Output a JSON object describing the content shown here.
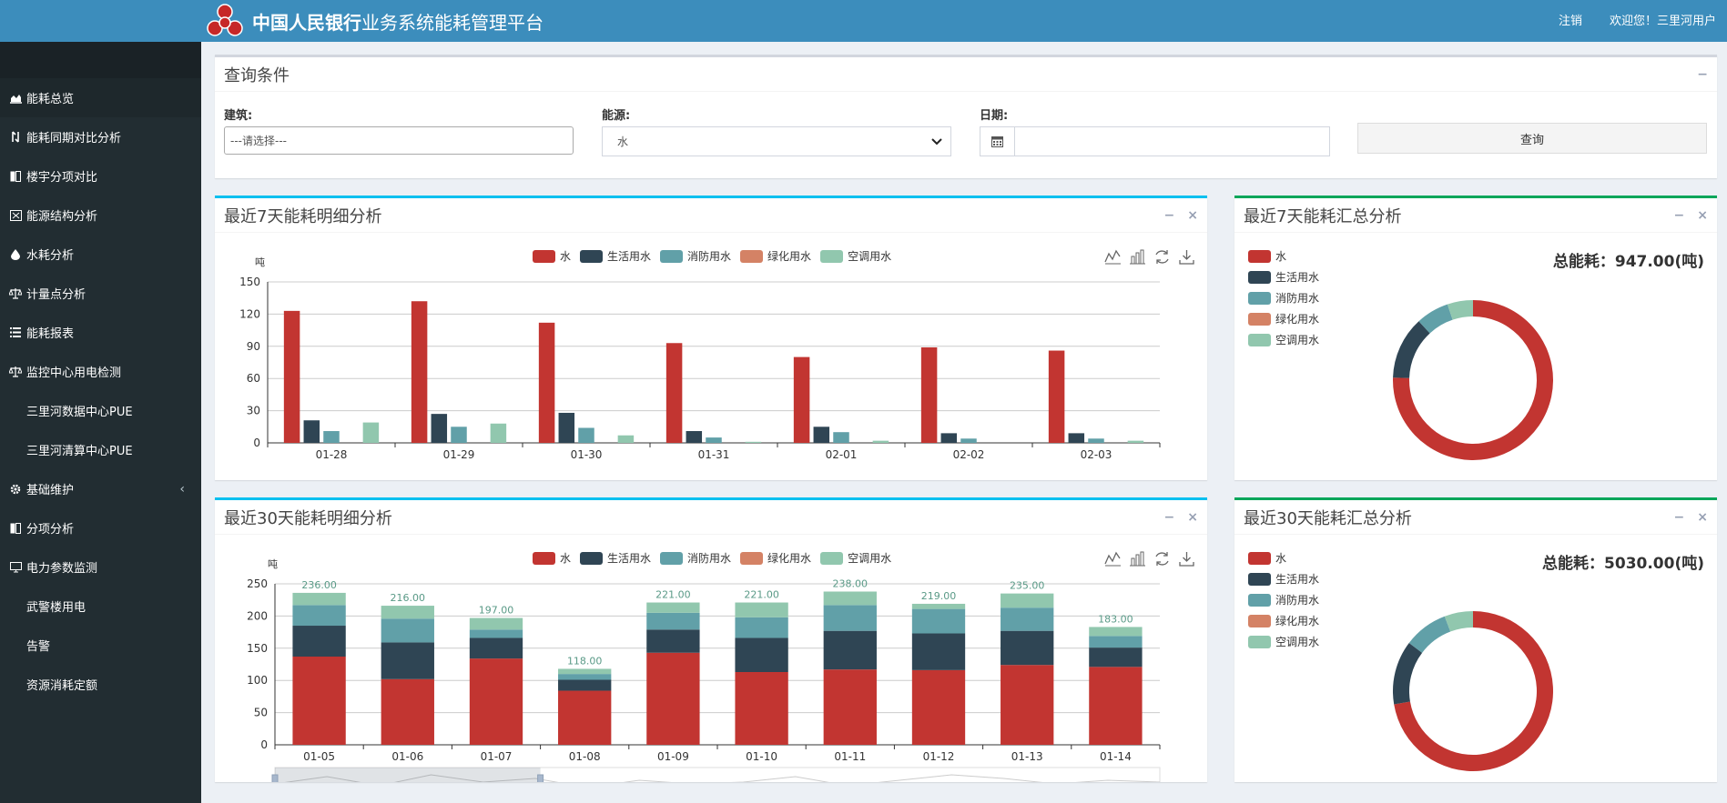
{
  "header": {
    "brand_bold": "中国人民银行",
    "brand_rest": "业务系统能耗管理平台",
    "logout": "注销",
    "welcome": "欢迎您！三里河用户"
  },
  "sidebar": {
    "items": [
      {
        "label": "能耗总览",
        "icon": "area-chart-icon"
      },
      {
        "label": "能耗同期对比分析",
        "icon": "compare-icon"
      },
      {
        "label": "楼宇分项对比",
        "icon": "columns-icon"
      },
      {
        "label": "能源结构分析",
        "icon": "structure-icon"
      },
      {
        "label": "水耗分析",
        "icon": "drop-icon"
      },
      {
        "label": "计量点分析",
        "icon": "scale-icon"
      },
      {
        "label": "能耗报表",
        "icon": "list-icon"
      },
      {
        "label": "监控中心用电检测",
        "icon": "scale-icon"
      },
      {
        "label": "三里河数据中心PUE"
      },
      {
        "label": "三里河清算中心PUE"
      },
      {
        "label": "基础维护",
        "icon": "gear-icon"
      },
      {
        "label": "分项分析",
        "icon": "columns-icon"
      },
      {
        "label": "电力参数监测",
        "icon": "monitor-icon"
      },
      {
        "label": "武警楼用电"
      },
      {
        "label": "告警"
      },
      {
        "label": "资源消耗定额"
      }
    ]
  },
  "query": {
    "title": "查询条件",
    "building_label": "建筑:",
    "building_placeholder": "---请选择---",
    "energy_label": "能源:",
    "energy_value": "水",
    "date_label": "日期:",
    "date_value": "",
    "button": "查询"
  },
  "colors": {
    "water": "#c23531",
    "life": "#2f4554",
    "fire": "#61a0a8",
    "green": "#d48265",
    "ac": "#91c7ae"
  },
  "legend_labels": [
    "水",
    "生活用水",
    "消防用水",
    "绿化用水",
    "空调用水"
  ],
  "panels": {
    "week_detail_title": "最近7天能耗明细分析",
    "week_summary_title": "最近7天能耗汇总分析",
    "month_detail_title": "最近30天能耗明细分析",
    "month_summary_title": "最近30天能耗汇总分析",
    "week_total": "总能耗：947.00(吨)",
    "month_total": "总能耗：5030.00(吨)"
  },
  "chart_data": [
    {
      "type": "bar",
      "ylabel": "吨",
      "ylim": [
        0,
        150
      ],
      "yticks": [
        0,
        30,
        60,
        90,
        120,
        150
      ],
      "categories": [
        "01-28",
        "01-29",
        "01-30",
        "01-31",
        "02-01",
        "02-02",
        "02-03"
      ],
      "series": [
        {
          "name": "水",
          "values": [
            123,
            132,
            112,
            93,
            80,
            89,
            86
          ]
        },
        {
          "name": "生活用水",
          "values": [
            21,
            27,
            28,
            11,
            15,
            9,
            9
          ]
        },
        {
          "name": "消防用水",
          "values": [
            11,
            15,
            14,
            5,
            10,
            4,
            4
          ]
        },
        {
          "name": "绿化用水",
          "values": [
            0,
            0,
            0,
            0,
            0,
            0,
            0
          ]
        },
        {
          "name": "空调用水",
          "values": [
            19,
            18,
            7,
            1,
            2,
            0,
            2
          ]
        }
      ]
    },
    {
      "type": "pie",
      "labels": [
        "水",
        "生活用水",
        "消防用水",
        "绿化用水",
        "空调用水"
      ],
      "values": [
        715,
        120,
        63,
        0,
        49
      ]
    },
    {
      "type": "bar",
      "stacked": true,
      "ylabel": "吨",
      "ylim": [
        0,
        250
      ],
      "yticks": [
        0,
        50,
        100,
        150,
        200,
        250
      ],
      "categories": [
        "01-05",
        "01-06",
        "01-07",
        "01-08",
        "01-09",
        "01-10",
        "01-11",
        "01-12",
        "01-13",
        "01-14"
      ],
      "series": [
        {
          "name": "水",
          "values": [
            137,
            102,
            134,
            84,
            143,
            113,
            117,
            116,
            124,
            121
          ]
        },
        {
          "name": "生活用水",
          "values": [
            48,
            57,
            32,
            17,
            36,
            53,
            60,
            57,
            53,
            30
          ]
        },
        {
          "name": "消防用水",
          "values": [
            32,
            37,
            13,
            9,
            26,
            32,
            40,
            38,
            36,
            18
          ]
        },
        {
          "name": "绿化用水",
          "values": [
            0,
            0,
            0,
            0,
            0,
            0,
            0,
            0,
            0,
            0
          ]
        },
        {
          "name": "空调用水",
          "values": [
            19,
            20,
            18,
            8,
            16,
            23,
            21,
            8,
            22,
            14
          ]
        }
      ],
      "totals": [
        "236.00",
        "216.00",
        "197.00",
        "118.00",
        "221.00",
        "221.00",
        "238.00",
        "219.00",
        "235.00",
        "183.00"
      ]
    },
    {
      "type": "pie",
      "labels": [
        "水",
        "生活用水",
        "消防用水",
        "绿化用水",
        "空调用水"
      ],
      "values": [
        3640,
        650,
        450,
        0,
        290
      ]
    }
  ]
}
